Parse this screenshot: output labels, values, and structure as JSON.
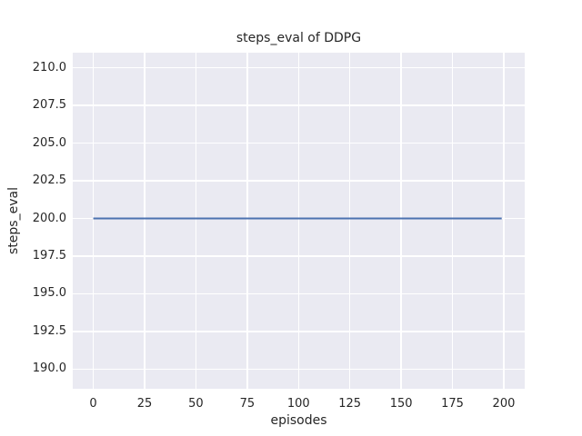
{
  "figure": {
    "background": "#ffffff",
    "text_color": "#262626"
  },
  "chart_data": {
    "type": "line",
    "title": "steps_eval of DDPG",
    "xlabel": "episodes",
    "ylabel": "steps_eval",
    "xlim": [
      -10,
      210.2
    ],
    "ylim": [
      188.7,
      211.0
    ],
    "grid": true,
    "legend": "none",
    "plot_bg_color": "#eaeaf2",
    "grid_color": "#ffffff",
    "xticks": [
      {
        "v": 0,
        "label": "0"
      },
      {
        "v": 25,
        "label": "25"
      },
      {
        "v": 50,
        "label": "50"
      },
      {
        "v": 75,
        "label": "75"
      },
      {
        "v": 100,
        "label": "100"
      },
      {
        "v": 125,
        "label": "125"
      },
      {
        "v": 150,
        "label": "150"
      },
      {
        "v": 175,
        "label": "175"
      },
      {
        "v": 200,
        "label": "200"
      }
    ],
    "yticks": [
      {
        "v": 190.0,
        "label": "190.0"
      },
      {
        "v": 192.5,
        "label": "192.5"
      },
      {
        "v": 195.0,
        "label": "195.0"
      },
      {
        "v": 197.5,
        "label": "197.5"
      },
      {
        "v": 200.0,
        "label": "200.0"
      },
      {
        "v": 202.5,
        "label": "202.5"
      },
      {
        "v": 205.0,
        "label": "205.0"
      },
      {
        "v": 207.5,
        "label": "207.5"
      },
      {
        "v": 210.0,
        "label": "210.0"
      }
    ],
    "series": [
      {
        "name": "DDPG",
        "color": "#4c72b0",
        "linewidth": 2,
        "x": [
          0,
          199
        ],
        "y": [
          200,
          200
        ],
        "note": "constant steps_eval value of 200 across episodes 0-199"
      }
    ]
  }
}
